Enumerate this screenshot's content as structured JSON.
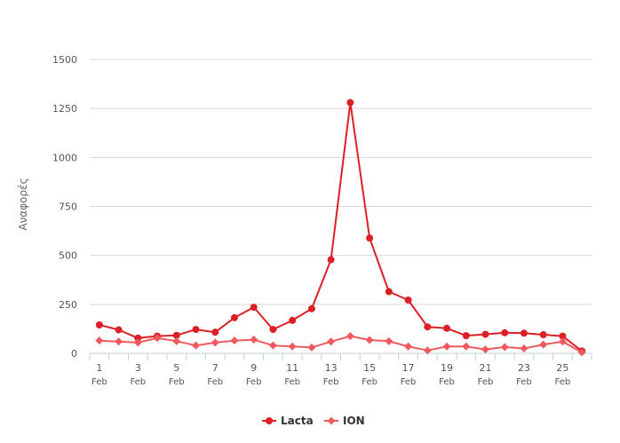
{
  "chart_data": {
    "type": "line",
    "title": "",
    "xlabel": "",
    "ylabel": "Αναφορές",
    "ylim": [
      0,
      1500
    ],
    "yticks": [
      0,
      250,
      500,
      750,
      1000,
      1250,
      1500
    ],
    "xtick_labels": [
      {
        "day": 1,
        "day_label": "1",
        "month_label": "Feb"
      },
      {
        "day": 3,
        "day_label": "3",
        "month_label": "Feb"
      },
      {
        "day": 5,
        "day_label": "5",
        "month_label": "Feb"
      },
      {
        "day": 7,
        "day_label": "7",
        "month_label": "Feb"
      },
      {
        "day": 9,
        "day_label": "9",
        "month_label": "Feb"
      },
      {
        "day": 11,
        "day_label": "11",
        "month_label": "Feb"
      },
      {
        "day": 13,
        "day_label": "13",
        "month_label": "Feb"
      },
      {
        "day": 15,
        "day_label": "15",
        "month_label": "Feb"
      },
      {
        "day": 17,
        "day_label": "17",
        "month_label": "Feb"
      },
      {
        "day": 19,
        "day_label": "19",
        "month_label": "Feb"
      },
      {
        "day": 21,
        "day_label": "21",
        "month_label": "Feb"
      },
      {
        "day": 23,
        "day_label": "23",
        "month_label": "Feb"
      },
      {
        "day": 25,
        "day_label": "25",
        "month_label": "Feb"
      }
    ],
    "x": [
      1,
      2,
      3,
      4,
      5,
      6,
      7,
      8,
      9,
      10,
      11,
      12,
      13,
      14,
      15,
      16,
      17,
      18,
      19,
      20,
      21,
      22,
      23,
      24,
      25,
      26
    ],
    "series": [
      {
        "name": "Lacta",
        "color": "#dd1f26",
        "marker": "circle",
        "values": [
          145,
          120,
          78,
          88,
          92,
          122,
          108,
          182,
          235,
          122,
          168,
          228,
          478,
          1280,
          588,
          315,
          272,
          135,
          128,
          90,
          97,
          105,
          103,
          95,
          88,
          12
        ]
      },
      {
        "name": "ION",
        "color": "#f05a5e",
        "marker": "diamond",
        "values": [
          65,
          60,
          55,
          78,
          62,
          40,
          55,
          65,
          70,
          40,
          35,
          30,
          60,
          88,
          68,
          62,
          35,
          15,
          35,
          35,
          20,
          32,
          25,
          45,
          60,
          5
        ]
      }
    ],
    "grid": true,
    "legend_position": "bottom-center",
    "colors": {
      "grid": "#d8d8d8",
      "axis": "#c0d0e0",
      "text": "#555555"
    }
  }
}
